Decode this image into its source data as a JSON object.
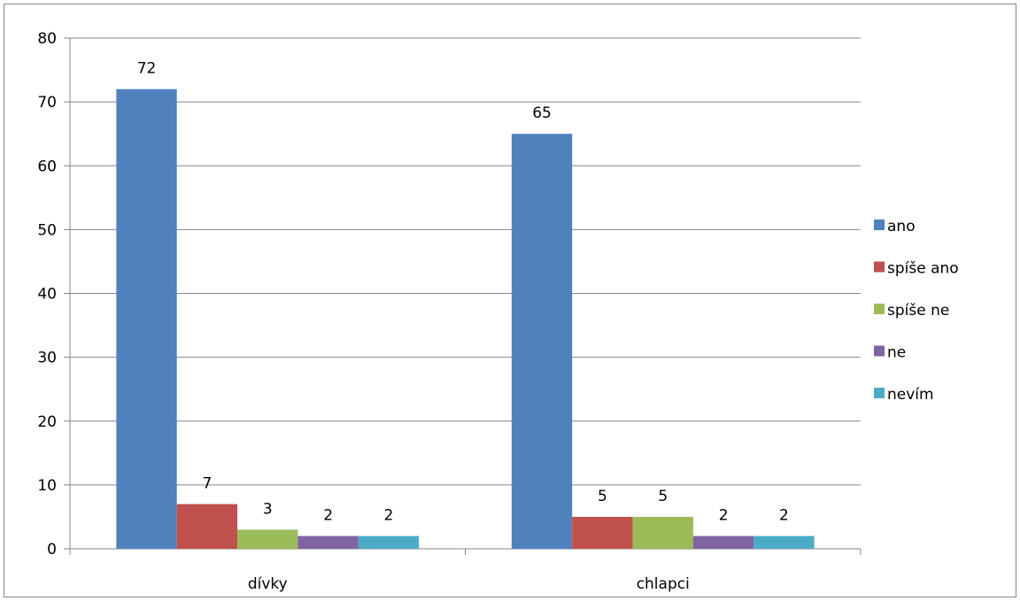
{
  "chart_data": {
    "type": "bar",
    "categories": [
      "dívky",
      "chlapci"
    ],
    "series": [
      {
        "name": "ano",
        "color": "#4F81BD",
        "values": [
          72,
          65
        ]
      },
      {
        "name": "spíše ano",
        "color": "#C0504D",
        "values": [
          7,
          5
        ]
      },
      {
        "name": "spíše ne",
        "color": "#9BBB59",
        "values": [
          3,
          5
        ]
      },
      {
        "name": "ne",
        "color": "#8064A2",
        "values": [
          2,
          2
        ]
      },
      {
        "name": "nevím",
        "color": "#4BACC6",
        "values": [
          2,
          2
        ]
      }
    ],
    "ylim": [
      0,
      80
    ],
    "yticks": [
      "0",
      "10",
      "20",
      "30",
      "40",
      "50",
      "60",
      "70",
      "80"
    ],
    "grid": true,
    "legend_position": "right",
    "data_labels": true
  }
}
